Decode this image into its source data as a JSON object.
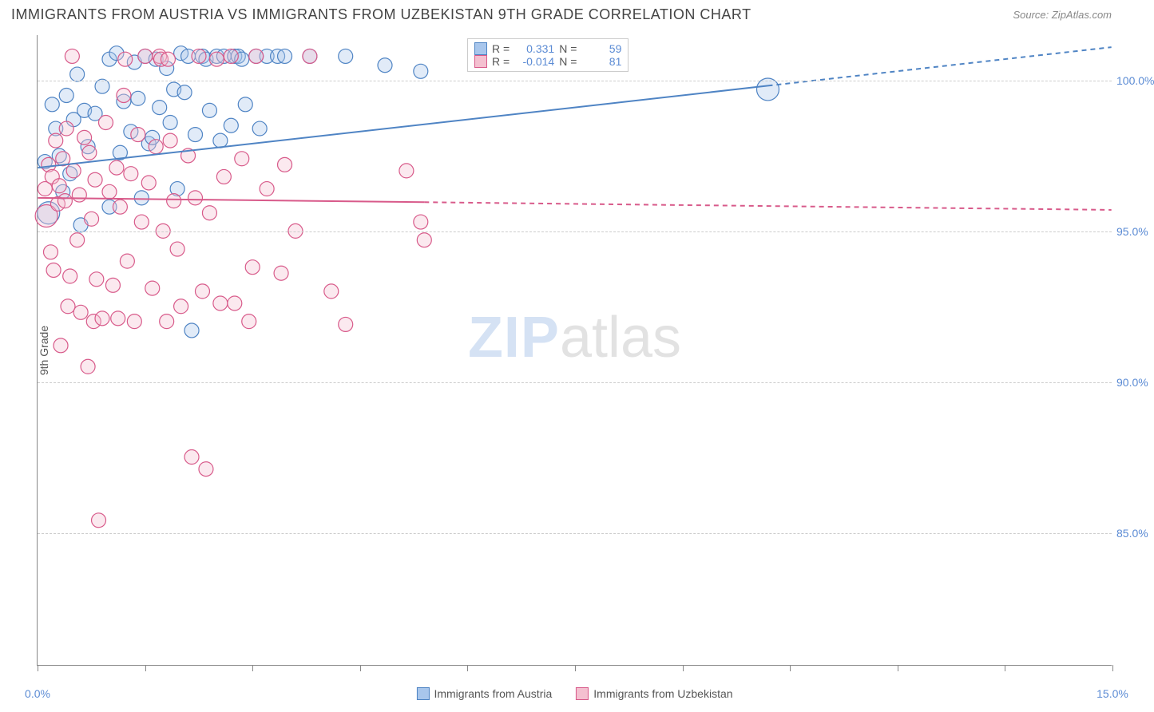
{
  "title": "IMMIGRANTS FROM AUSTRIA VS IMMIGRANTS FROM UZBEKISTAN 9TH GRADE CORRELATION CHART",
  "source": "Source: ZipAtlas.com",
  "ylabel": "9th Grade",
  "watermark": {
    "bold": "ZIP",
    "rest": "atlas"
  },
  "chart": {
    "type": "scatter-with-trendlines",
    "xlim": [
      0.0,
      15.0
    ],
    "ylim": [
      80.6,
      101.5
    ],
    "yticks": [
      85.0,
      90.0,
      95.0,
      100.0
    ],
    "ytick_labels": [
      "85.0%",
      "90.0%",
      "95.0%",
      "100.0%"
    ],
    "xticks": [
      0.0,
      1.5,
      3.0,
      4.5,
      6.0,
      7.5,
      9.0,
      10.5,
      12.0,
      13.5,
      15.0
    ],
    "xtick_labels": {
      "0.0": "0.0%",
      "15.0": "15.0%"
    },
    "grid_color": "#cccccc",
    "axis_color": "#888888",
    "background_color": "#ffffff",
    "marker_radius": 9,
    "marker_radius_large": 14,
    "marker_fill_opacity": 0.35,
    "marker_stroke_width": 1.2,
    "trend_line_width": 2,
    "tick_label_color": "#5b8bd4",
    "series": [
      {
        "name": "Immigrants from Austria",
        "color_fill": "#a8c6ec",
        "color_stroke": "#4f84c4",
        "r_value": "0.331",
        "n_value": "59",
        "trend": {
          "x1": 0.0,
          "y1": 97.1,
          "x2": 15.0,
          "y2": 101.1,
          "solid_until_x": 10.2
        },
        "points": [
          [
            0.1,
            97.3
          ],
          [
            0.15,
            95.6,
            "large"
          ],
          [
            0.2,
            99.2
          ],
          [
            0.25,
            98.4
          ],
          [
            0.3,
            97.5
          ],
          [
            0.35,
            96.3
          ],
          [
            0.4,
            99.5
          ],
          [
            0.45,
            96.9
          ],
          [
            0.5,
            98.7
          ],
          [
            0.55,
            100.2
          ],
          [
            0.6,
            95.2
          ],
          [
            0.65,
            99.0
          ],
          [
            0.7,
            97.8
          ],
          [
            0.8,
            98.9
          ],
          [
            0.9,
            99.8
          ],
          [
            1.0,
            95.8
          ],
          [
            1.0,
            100.7
          ],
          [
            1.1,
            100.9
          ],
          [
            1.15,
            97.6
          ],
          [
            1.2,
            99.3
          ],
          [
            1.3,
            98.3
          ],
          [
            1.35,
            100.6
          ],
          [
            1.4,
            99.4
          ],
          [
            1.45,
            96.1
          ],
          [
            1.5,
            100.8
          ],
          [
            1.55,
            97.9
          ],
          [
            1.6,
            98.1
          ],
          [
            1.65,
            100.7
          ],
          [
            1.7,
            99.1
          ],
          [
            1.8,
            100.4
          ],
          [
            1.85,
            98.6
          ],
          [
            1.9,
            99.7
          ],
          [
            1.95,
            96.4
          ],
          [
            2.0,
            100.9
          ],
          [
            2.05,
            99.6
          ],
          [
            2.1,
            100.8
          ],
          [
            2.15,
            91.7
          ],
          [
            2.2,
            98.2
          ],
          [
            2.3,
            100.8
          ],
          [
            2.35,
            100.7
          ],
          [
            2.4,
            99.0
          ],
          [
            2.5,
            100.8
          ],
          [
            2.55,
            98.0
          ],
          [
            2.6,
            100.8
          ],
          [
            2.7,
            98.5
          ],
          [
            2.75,
            100.8
          ],
          [
            2.8,
            100.8
          ],
          [
            2.85,
            100.7
          ],
          [
            2.9,
            99.2
          ],
          [
            3.05,
            100.8
          ],
          [
            3.1,
            98.4
          ],
          [
            3.2,
            100.8
          ],
          [
            3.35,
            100.8
          ],
          [
            3.45,
            100.8
          ],
          [
            3.8,
            100.8
          ],
          [
            4.3,
            100.8
          ],
          [
            4.85,
            100.5
          ],
          [
            5.35,
            100.3
          ],
          [
            10.2,
            99.7,
            "large"
          ]
        ]
      },
      {
        "name": "Immigrants from Uzbekistan",
        "color_fill": "#f4c0d0",
        "color_stroke": "#d85a8a",
        "r_value": "-0.014",
        "n_value": "81",
        "trend": {
          "x1": 0.0,
          "y1": 96.1,
          "x2": 15.0,
          "y2": 95.7,
          "solid_until_x": 5.4
        },
        "points": [
          [
            0.1,
            96.4
          ],
          [
            0.12,
            95.5,
            "large"
          ],
          [
            0.15,
            97.2
          ],
          [
            0.18,
            94.3
          ],
          [
            0.2,
            96.8
          ],
          [
            0.22,
            93.7
          ],
          [
            0.25,
            98.0
          ],
          [
            0.28,
            95.9
          ],
          [
            0.3,
            96.5
          ],
          [
            0.32,
            91.2
          ],
          [
            0.35,
            97.4
          ],
          [
            0.38,
            96.0
          ],
          [
            0.4,
            98.4
          ],
          [
            0.42,
            92.5
          ],
          [
            0.45,
            93.5
          ],
          [
            0.48,
            100.8
          ],
          [
            0.5,
            97.0
          ],
          [
            0.55,
            94.7
          ],
          [
            0.58,
            96.2
          ],
          [
            0.6,
            92.3
          ],
          [
            0.65,
            98.1
          ],
          [
            0.7,
            90.5
          ],
          [
            0.72,
            97.6
          ],
          [
            0.75,
            95.4
          ],
          [
            0.78,
            92.0
          ],
          [
            0.8,
            96.7
          ],
          [
            0.82,
            93.4
          ],
          [
            0.85,
            85.4
          ],
          [
            0.9,
            92.1
          ],
          [
            0.95,
            98.6
          ],
          [
            1.0,
            96.3
          ],
          [
            1.05,
            93.2
          ],
          [
            1.1,
            97.1
          ],
          [
            1.12,
            92.1
          ],
          [
            1.15,
            95.8
          ],
          [
            1.2,
            99.5
          ],
          [
            1.22,
            100.7
          ],
          [
            1.25,
            94.0
          ],
          [
            1.3,
            96.9
          ],
          [
            1.35,
            92.0
          ],
          [
            1.4,
            98.2
          ],
          [
            1.45,
            95.3
          ],
          [
            1.5,
            100.8
          ],
          [
            1.55,
            96.6
          ],
          [
            1.6,
            93.1
          ],
          [
            1.65,
            97.8
          ],
          [
            1.7,
            100.8
          ],
          [
            1.72,
            100.7
          ],
          [
            1.75,
            95.0
          ],
          [
            1.8,
            92.0
          ],
          [
            1.82,
            100.7
          ],
          [
            1.85,
            98.0
          ],
          [
            1.9,
            96.0
          ],
          [
            1.95,
            94.4
          ],
          [
            2.0,
            92.5
          ],
          [
            2.1,
            97.5
          ],
          [
            2.15,
            87.5
          ],
          [
            2.2,
            96.1
          ],
          [
            2.25,
            100.8
          ],
          [
            2.3,
            93.0
          ],
          [
            2.35,
            87.1
          ],
          [
            2.4,
            95.6
          ],
          [
            2.5,
            100.7
          ],
          [
            2.55,
            92.6
          ],
          [
            2.6,
            96.8
          ],
          [
            2.7,
            100.8
          ],
          [
            2.75,
            92.6
          ],
          [
            2.85,
            97.4
          ],
          [
            2.95,
            92.0
          ],
          [
            3.0,
            93.8
          ],
          [
            3.05,
            100.8
          ],
          [
            3.2,
            96.4
          ],
          [
            3.4,
            93.6
          ],
          [
            3.45,
            97.2
          ],
          [
            3.6,
            95.0
          ],
          [
            3.8,
            100.8
          ],
          [
            4.1,
            93.0
          ],
          [
            4.3,
            91.9
          ],
          [
            5.15,
            97.0
          ],
          [
            5.35,
            95.3
          ],
          [
            5.4,
            94.7
          ]
        ]
      }
    ]
  },
  "legend_top": {
    "rows": [
      {
        "r_label": "R =",
        "r_val": "0.331",
        "n_label": "N =",
        "n_val": "59"
      },
      {
        "r_label": "R =",
        "r_val": "-0.014",
        "n_label": "N =",
        "n_val": "81"
      }
    ]
  },
  "legend_bottom": [
    {
      "label": "Immigrants from Austria"
    },
    {
      "label": "Immigrants from Uzbekistan"
    }
  ]
}
